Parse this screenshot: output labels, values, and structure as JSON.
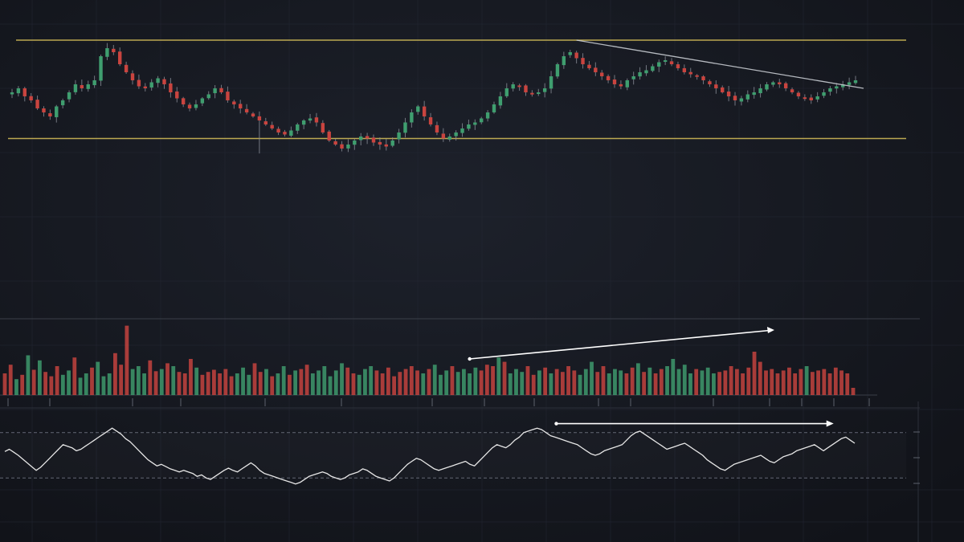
{
  "chart_data": [
    {
      "panel": "price",
      "type": "candlestick",
      "title": "",
      "xlabel": "",
      "ylabel": "",
      "ylim": [
        0,
        100
      ],
      "grid": true,
      "colors": {
        "up": "#3f9e6f",
        "down": "#c9443f",
        "wick": "#8a8f99",
        "level": "#d9c25a",
        "trendline": "#c8ccd2",
        "background": "#14161d"
      },
      "close": [
        70,
        72,
        68,
        66,
        62,
        60,
        58,
        63,
        66,
        70,
        74,
        72,
        74,
        76,
        88,
        92,
        90,
        84,
        80,
        76,
        73,
        72,
        75,
        77,
        74,
        70,
        67,
        64,
        62,
        64,
        67,
        69,
        72,
        70,
        66,
        64,
        62,
        60,
        58,
        56,
        54,
        52,
        50,
        49,
        51,
        54,
        56,
        57,
        55,
        50,
        46,
        44,
        42,
        44,
        46,
        48,
        47,
        45,
        44,
        43,
        46,
        50,
        55,
        60,
        63,
        58,
        54,
        50,
        47,
        48,
        50,
        52,
        54,
        55,
        57,
        60,
        64,
        68,
        72,
        74,
        73,
        70,
        69,
        70,
        72,
        78,
        84,
        88,
        90,
        87,
        84,
        82,
        80,
        78,
        76,
        74,
        73,
        76,
        78,
        80,
        81,
        83,
        85,
        86,
        84,
        82,
        80,
        79,
        78,
        76,
        74,
        72,
        70,
        68,
        66,
        67,
        69,
        70,
        72,
        74,
        75,
        74,
        72,
        70,
        68,
        67,
        66,
        68,
        70,
        72,
        73,
        74,
        75,
        76
      ],
      "levels": {
        "resistance": 96,
        "support": 47
      },
      "trendline": {
        "from": {
          "index": 89,
          "value": 96
        },
        "to": {
          "index": 133,
          "value": 72
        }
      }
    },
    {
      "panel": "volume",
      "type": "bar",
      "title": "",
      "ylim": [
        0,
        100
      ],
      "colors": {
        "up": "#3f9e6f",
        "down": "#c9443f",
        "trendline": "#ffffff"
      },
      "values": [
        30,
        42,
        22,
        28,
        55,
        35,
        48,
        32,
        26,
        40,
        28,
        34,
        52,
        24,
        30,
        38,
        46,
        26,
        30,
        58,
        42,
        96,
        36,
        40,
        30,
        48,
        33,
        36,
        44,
        40,
        32,
        30,
        50,
        38,
        28,
        32,
        35,
        30,
        36,
        26,
        30,
        38,
        28,
        44,
        32,
        36,
        26,
        30,
        40,
        28,
        34,
        36,
        42,
        30,
        34,
        40,
        26,
        34,
        44,
        38,
        30,
        28,
        36,
        40,
        34,
        30,
        38,
        26,
        32,
        36,
        40,
        34,
        30,
        36,
        42,
        28,
        34,
        40,
        32,
        36,
        30,
        38,
        34,
        42,
        40,
        52,
        46,
        30,
        36,
        32,
        40,
        28,
        34,
        38,
        30,
        36,
        32,
        40,
        34,
        28,
        36,
        46,
        32,
        40,
        30,
        36,
        34,
        30,
        38,
        44,
        32,
        38,
        30,
        36,
        40,
        50,
        36,
        42,
        30,
        36,
        34,
        38,
        30,
        32,
        34,
        40,
        36,
        30,
        38,
        60,
        46,
        34,
        36,
        30,
        34,
        38,
        30,
        36,
        40,
        32,
        34,
        36,
        30,
        38,
        34,
        30,
        10
      ],
      "trendline": {
        "from": {
          "index": 80,
          "value": 50
        },
        "to": {
          "index": 120,
          "value": 90
        }
      }
    },
    {
      "panel": "oscillator",
      "type": "line",
      "title": "",
      "ylim": [
        0,
        100
      ],
      "bands": {
        "upper": 80,
        "lower": 20
      },
      "colors": {
        "line": "#e6e6e6",
        "band": "#6e7380",
        "trendline": "#ffffff"
      },
      "values": [
        55,
        58,
        54,
        50,
        45,
        40,
        35,
        30,
        34,
        40,
        46,
        52,
        58,
        64,
        62,
        60,
        56,
        58,
        62,
        66,
        70,
        74,
        78,
        82,
        86,
        82,
        78,
        72,
        68,
        62,
        56,
        50,
        44,
        40,
        36,
        38,
        35,
        32,
        30,
        28,
        30,
        28,
        26,
        22,
        24,
        20,
        18,
        22,
        26,
        30,
        33,
        30,
        28,
        32,
        36,
        40,
        36,
        30,
        26,
        24,
        22,
        20,
        18,
        16,
        14,
        12,
        14,
        18,
        22,
        24,
        26,
        28,
        26,
        22,
        20,
        18,
        20,
        24,
        26,
        28,
        32,
        30,
        26,
        22,
        20,
        18,
        16,
        20,
        26,
        32,
        38,
        42,
        46,
        44,
        40,
        36,
        32,
        30,
        32,
        34,
        36,
        38,
        40,
        42,
        38,
        36,
        42,
        48,
        54,
        60,
        64,
        62,
        60,
        64,
        70,
        74,
        80,
        82,
        84,
        86,
        84,
        80,
        76,
        74,
        72,
        70,
        68,
        66,
        64,
        60,
        56,
        52,
        50,
        52,
        56,
        58,
        60,
        62,
        64,
        70,
        76,
        80,
        82,
        78,
        74,
        70,
        66,
        62,
        58,
        60,
        62,
        64,
        66,
        62,
        58,
        54,
        50,
        44,
        40,
        36,
        32,
        30,
        34,
        38,
        40,
        42,
        44,
        46,
        48,
        50,
        46,
        42,
        40,
        44,
        48,
        50,
        52,
        56,
        58,
        60,
        62,
        64,
        60,
        56,
        60,
        64,
        68,
        72,
        74,
        70,
        66
      ],
      "trendline": {
        "from": {
          "index": 124,
          "value": 92
        },
        "to": {
          "index": 186,
          "value": 92
        }
      }
    }
  ]
}
